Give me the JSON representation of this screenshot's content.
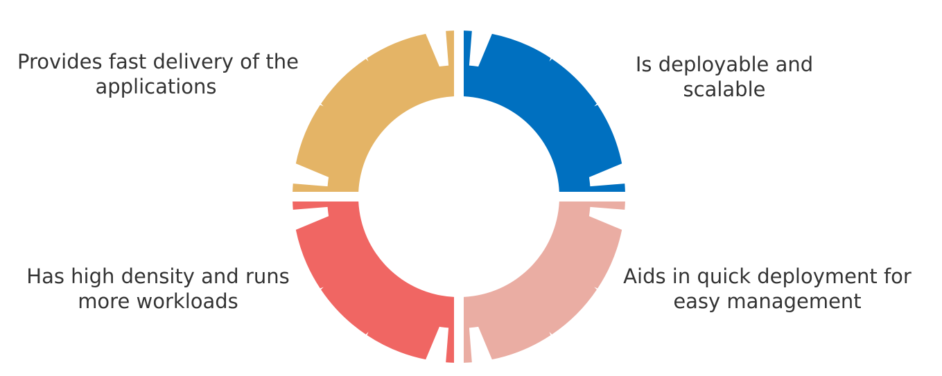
{
  "segments": [
    {
      "id": "top-left",
      "color": "#e4b466",
      "label_lines": [
        "Provides fast delivery of the",
        "applications"
      ]
    },
    {
      "id": "top-right",
      "color": "#0070c0",
      "label_lines": [
        "Is deployable and",
        "scalable"
      ]
    },
    {
      "id": "bottom-right",
      "color": "#eaada3",
      "label_lines": [
        "Aids in quick deployment for",
        "easy management"
      ]
    },
    {
      "id": "bottom-left",
      "color": "#f06663",
      "label_lines": [
        "Has high density and runs",
        "more workloads"
      ]
    }
  ]
}
